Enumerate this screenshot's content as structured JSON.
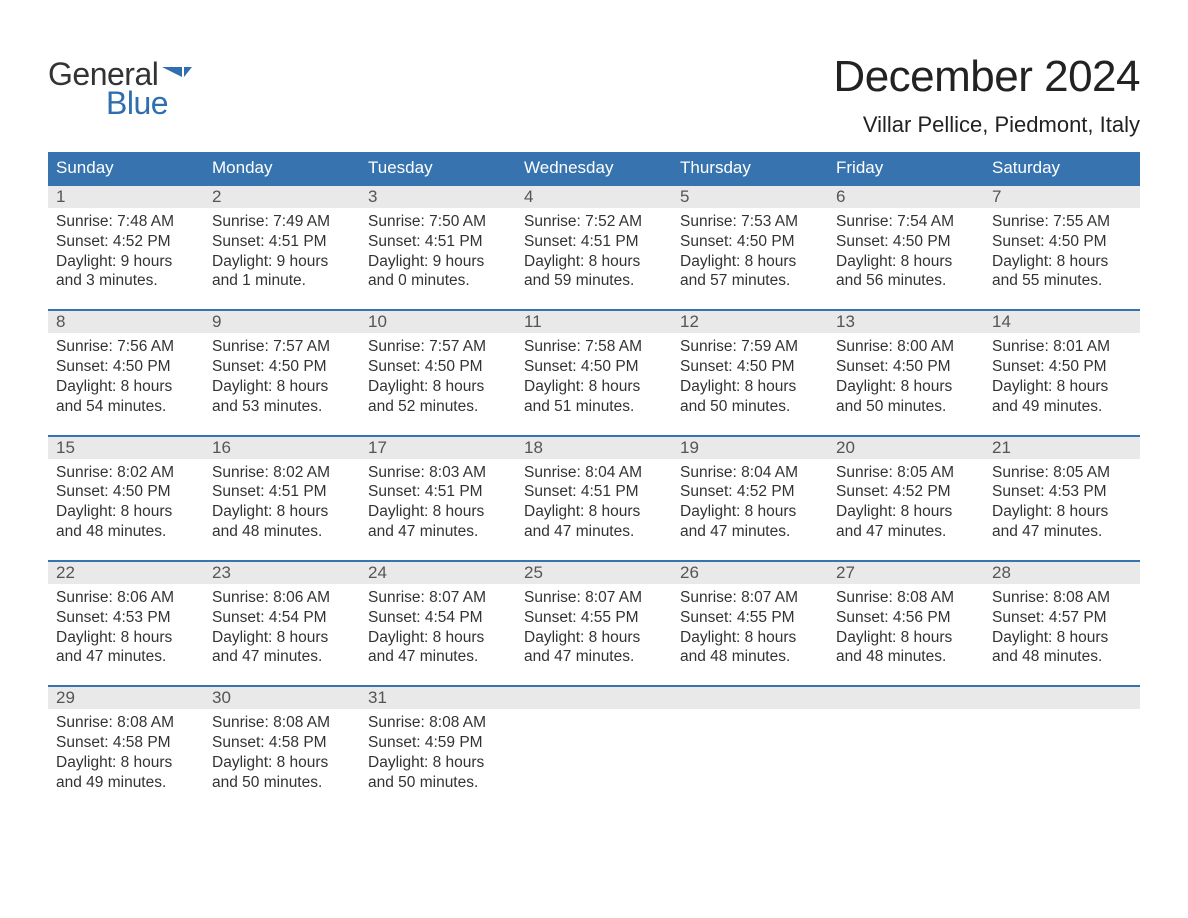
{
  "logo": {
    "part1": "General",
    "part2": "Blue",
    "flag_color": "#2f6fae"
  },
  "title": "December 2024",
  "location": "Villar Pellice, Piedmont, Italy",
  "colors": {
    "header_bg": "#3773ae",
    "header_text": "#ffffff",
    "day_bar_bg": "#e9e9e9",
    "week_border": "#3773ae",
    "body_text": "#333333",
    "background": "#ffffff"
  },
  "weekdays": [
    "Sunday",
    "Monday",
    "Tuesday",
    "Wednesday",
    "Thursday",
    "Friday",
    "Saturday"
  ],
  "weeks": [
    [
      {
        "day": "1",
        "sunrise": "7:48 AM",
        "sunset": "4:52 PM",
        "daylight1": "Daylight: 9 hours",
        "daylight2": "and 3 minutes."
      },
      {
        "day": "2",
        "sunrise": "7:49 AM",
        "sunset": "4:51 PM",
        "daylight1": "Daylight: 9 hours",
        "daylight2": "and 1 minute."
      },
      {
        "day": "3",
        "sunrise": "7:50 AM",
        "sunset": "4:51 PM",
        "daylight1": "Daylight: 9 hours",
        "daylight2": "and 0 minutes."
      },
      {
        "day": "4",
        "sunrise": "7:52 AM",
        "sunset": "4:51 PM",
        "daylight1": "Daylight: 8 hours",
        "daylight2": "and 59 minutes."
      },
      {
        "day": "5",
        "sunrise": "7:53 AM",
        "sunset": "4:50 PM",
        "daylight1": "Daylight: 8 hours",
        "daylight2": "and 57 minutes."
      },
      {
        "day": "6",
        "sunrise": "7:54 AM",
        "sunset": "4:50 PM",
        "daylight1": "Daylight: 8 hours",
        "daylight2": "and 56 minutes."
      },
      {
        "day": "7",
        "sunrise": "7:55 AM",
        "sunset": "4:50 PM",
        "daylight1": "Daylight: 8 hours",
        "daylight2": "and 55 minutes."
      }
    ],
    [
      {
        "day": "8",
        "sunrise": "7:56 AM",
        "sunset": "4:50 PM",
        "daylight1": "Daylight: 8 hours",
        "daylight2": "and 54 minutes."
      },
      {
        "day": "9",
        "sunrise": "7:57 AM",
        "sunset": "4:50 PM",
        "daylight1": "Daylight: 8 hours",
        "daylight2": "and 53 minutes."
      },
      {
        "day": "10",
        "sunrise": "7:57 AM",
        "sunset": "4:50 PM",
        "daylight1": "Daylight: 8 hours",
        "daylight2": "and 52 minutes."
      },
      {
        "day": "11",
        "sunrise": "7:58 AM",
        "sunset": "4:50 PM",
        "daylight1": "Daylight: 8 hours",
        "daylight2": "and 51 minutes."
      },
      {
        "day": "12",
        "sunrise": "7:59 AM",
        "sunset": "4:50 PM",
        "daylight1": "Daylight: 8 hours",
        "daylight2": "and 50 minutes."
      },
      {
        "day": "13",
        "sunrise": "8:00 AM",
        "sunset": "4:50 PM",
        "daylight1": "Daylight: 8 hours",
        "daylight2": "and 50 minutes."
      },
      {
        "day": "14",
        "sunrise": "8:01 AM",
        "sunset": "4:50 PM",
        "daylight1": "Daylight: 8 hours",
        "daylight2": "and 49 minutes."
      }
    ],
    [
      {
        "day": "15",
        "sunrise": "8:02 AM",
        "sunset": "4:50 PM",
        "daylight1": "Daylight: 8 hours",
        "daylight2": "and 48 minutes."
      },
      {
        "day": "16",
        "sunrise": "8:02 AM",
        "sunset": "4:51 PM",
        "daylight1": "Daylight: 8 hours",
        "daylight2": "and 48 minutes."
      },
      {
        "day": "17",
        "sunrise": "8:03 AM",
        "sunset": "4:51 PM",
        "daylight1": "Daylight: 8 hours",
        "daylight2": "and 47 minutes."
      },
      {
        "day": "18",
        "sunrise": "8:04 AM",
        "sunset": "4:51 PM",
        "daylight1": "Daylight: 8 hours",
        "daylight2": "and 47 minutes."
      },
      {
        "day": "19",
        "sunrise": "8:04 AM",
        "sunset": "4:52 PM",
        "daylight1": "Daylight: 8 hours",
        "daylight2": "and 47 minutes."
      },
      {
        "day": "20",
        "sunrise": "8:05 AM",
        "sunset": "4:52 PM",
        "daylight1": "Daylight: 8 hours",
        "daylight2": "and 47 minutes."
      },
      {
        "day": "21",
        "sunrise": "8:05 AM",
        "sunset": "4:53 PM",
        "daylight1": "Daylight: 8 hours",
        "daylight2": "and 47 minutes."
      }
    ],
    [
      {
        "day": "22",
        "sunrise": "8:06 AM",
        "sunset": "4:53 PM",
        "daylight1": "Daylight: 8 hours",
        "daylight2": "and 47 minutes."
      },
      {
        "day": "23",
        "sunrise": "8:06 AM",
        "sunset": "4:54 PM",
        "daylight1": "Daylight: 8 hours",
        "daylight2": "and 47 minutes."
      },
      {
        "day": "24",
        "sunrise": "8:07 AM",
        "sunset": "4:54 PM",
        "daylight1": "Daylight: 8 hours",
        "daylight2": "and 47 minutes."
      },
      {
        "day": "25",
        "sunrise": "8:07 AM",
        "sunset": "4:55 PM",
        "daylight1": "Daylight: 8 hours",
        "daylight2": "and 47 minutes."
      },
      {
        "day": "26",
        "sunrise": "8:07 AM",
        "sunset": "4:55 PM",
        "daylight1": "Daylight: 8 hours",
        "daylight2": "and 48 minutes."
      },
      {
        "day": "27",
        "sunrise": "8:08 AM",
        "sunset": "4:56 PM",
        "daylight1": "Daylight: 8 hours",
        "daylight2": "and 48 minutes."
      },
      {
        "day": "28",
        "sunrise": "8:08 AM",
        "sunset": "4:57 PM",
        "daylight1": "Daylight: 8 hours",
        "daylight2": "and 48 minutes."
      }
    ],
    [
      {
        "day": "29",
        "sunrise": "8:08 AM",
        "sunset": "4:58 PM",
        "daylight1": "Daylight: 8 hours",
        "daylight2": "and 49 minutes."
      },
      {
        "day": "30",
        "sunrise": "8:08 AM",
        "sunset": "4:58 PM",
        "daylight1": "Daylight: 8 hours",
        "daylight2": "and 50 minutes."
      },
      {
        "day": "31",
        "sunrise": "8:08 AM",
        "sunset": "4:59 PM",
        "daylight1": "Daylight: 8 hours",
        "daylight2": "and 50 minutes."
      },
      null,
      null,
      null,
      null
    ]
  ],
  "labels": {
    "sunrise_prefix": "Sunrise: ",
    "sunset_prefix": "Sunset: "
  }
}
